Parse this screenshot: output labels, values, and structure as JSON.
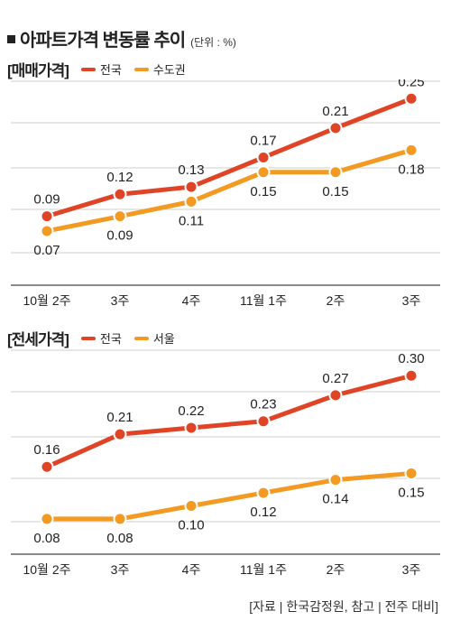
{
  "title": "아파트가격 변동률 추이",
  "unit": "(단위 : %)",
  "source": "[자료 | 한국감정원, 참고 | 전주 대비]",
  "colors": {
    "red": "#e04427",
    "orange": "#f29a22",
    "grid": "#cfcfcf",
    "axis": "#444444"
  },
  "chart_data": [
    {
      "type": "line",
      "title": "[매매가격]",
      "categories": [
        "10월 2주",
        "3주",
        "4주",
        "11월 1주",
        "2주",
        "3주"
      ],
      "series": [
        {
          "name": "전국",
          "values": [
            0.09,
            0.12,
            0.13,
            0.17,
            0.21,
            0.25
          ],
          "labels": [
            "0.09",
            "0.12",
            "0.13",
            "0.17",
            "0.21",
            "0.25"
          ]
        },
        {
          "name": "수도권",
          "values": [
            0.07,
            0.09,
            0.11,
            0.15,
            0.15,
            0.18
          ],
          "labels": [
            "0.07",
            "0.09",
            "0.11",
            "0.15",
            "0.15",
            "0.18"
          ]
        }
      ],
      "ylim": [
        0.0,
        0.27
      ],
      "grid": true,
      "legend": "top-left"
    },
    {
      "type": "line",
      "title": "[전세가격]",
      "categories": [
        "10월 2주",
        "3주",
        "4주",
        "11월 1주",
        "2주",
        "3주"
      ],
      "series": [
        {
          "name": "전국",
          "values": [
            0.16,
            0.21,
            0.22,
            0.23,
            0.27,
            0.3
          ],
          "labels": [
            "0.16",
            "0.21",
            "0.22",
            "0.23",
            "0.27",
            "0.30"
          ]
        },
        {
          "name": "서울",
          "values": [
            0.08,
            0.08,
            0.1,
            0.12,
            0.14,
            0.15
          ],
          "labels": [
            "0.08",
            "0.08",
            "0.10",
            "0.12",
            "0.14",
            "0.15"
          ]
        }
      ],
      "ylim": [
        0.03,
        0.335
      ],
      "grid": true,
      "legend": "top-left"
    }
  ]
}
